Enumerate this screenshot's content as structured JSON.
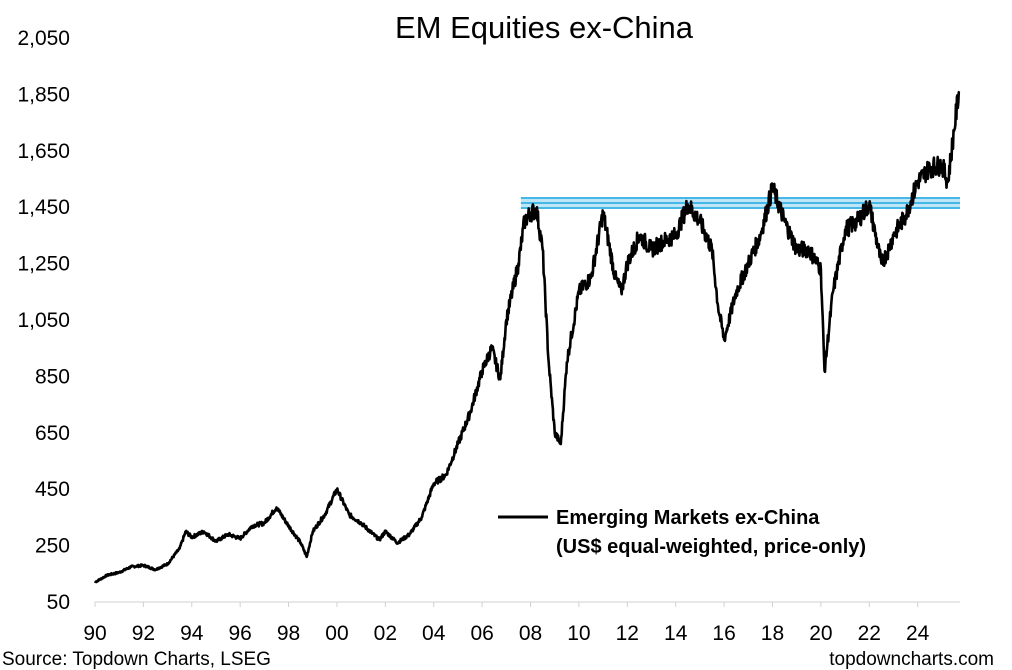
{
  "chart_data": {
    "type": "line",
    "title": "EM Equities ex-China",
    "xlabel": "",
    "ylabel": "",
    "ylim": [
      50,
      2050
    ],
    "xlim": [
      1990,
      2025.75
    ],
    "y_ticks": [
      50,
      250,
      450,
      650,
      850,
      1050,
      1250,
      1450,
      1650,
      1850,
      2050
    ],
    "y_tick_labels": [
      "50",
      "250",
      "450",
      "650",
      "850",
      "1,050",
      "1,250",
      "1,450",
      "1,650",
      "1,850",
      "2,050"
    ],
    "x_ticks": [
      1990,
      1992,
      1994,
      1996,
      1998,
      2000,
      2002,
      2004,
      2006,
      2008,
      2010,
      2012,
      2014,
      2016,
      2018,
      2020,
      2022,
      2024
    ],
    "x_tick_labels": [
      "90",
      "92",
      "94",
      "96",
      "98",
      "00",
      "02",
      "04",
      "06",
      "08",
      "10",
      "12",
      "14",
      "16",
      "18",
      "20",
      "22",
      "24"
    ],
    "grid": false,
    "legend": {
      "placement": "bottom-right",
      "entries": [
        {
          "line1": "Emerging Markets ex-China",
          "line2": "(US$ equal-weighted, price-only)",
          "color": "#000000"
        }
      ]
    },
    "series": [
      {
        "name": "Emerging Markets ex-China (US$ equal-weighted, price-only)",
        "color": "#000000",
        "x": [
          1990.0,
          1990.5,
          1991.0,
          1991.5,
          1992.0,
          1992.5,
          1993.0,
          1993.5,
          1993.75,
          1994.0,
          1994.5,
          1995.0,
          1995.5,
          1996.0,
          1996.5,
          1997.0,
          1997.5,
          1998.0,
          1998.5,
          1998.75,
          1999.0,
          1999.5,
          2000.0,
          2000.5,
          2001.0,
          2001.75,
          2002.0,
          2002.5,
          2003.0,
          2003.5,
          2004.0,
          2004.5,
          2005.0,
          2005.5,
          2006.0,
          2006.4,
          2006.75,
          2007.0,
          2007.5,
          2007.75,
          2008.0,
          2008.25,
          2008.5,
          2008.75,
          2009.0,
          2009.25,
          2009.5,
          2010.0,
          2010.5,
          2011.0,
          2011.5,
          2011.75,
          2012.0,
          2012.5,
          2013.0,
          2013.5,
          2014.0,
          2014.5,
          2015.0,
          2015.5,
          2015.75,
          2016.0,
          2016.5,
          2017.0,
          2017.5,
          2018.0,
          2018.5,
          2019.0,
          2019.5,
          2020.0,
          2020.15,
          2020.5,
          2021.0,
          2021.5,
          2022.0,
          2022.5,
          2022.75,
          2023.0,
          2023.5,
          2024.0,
          2024.5,
          2025.0,
          2025.25,
          2025.5,
          2025.7
        ],
        "y": [
          120,
          145,
          155,
          175,
          180,
          165,
          185,
          240,
          300,
          280,
          300,
          265,
          290,
          275,
          320,
          330,
          385,
          320,
          260,
          210,
          300,
          360,
          450,
          360,
          330,
          270,
          300,
          260,
          290,
          350,
          470,
          500,
          610,
          720,
          870,
          950,
          840,
          1050,
          1250,
          1400,
          1430,
          1440,
          1300,
          900,
          650,
          610,
          900,
          1150,
          1200,
          1430,
          1200,
          1150,
          1250,
          1350,
          1300,
          1330,
          1350,
          1460,
          1400,
          1300,
          1100,
          980,
          1150,
          1250,
          1350,
          1520,
          1400,
          1300,
          1300,
          1230,
          870,
          1150,
          1370,
          1400,
          1460,
          1250,
          1290,
          1350,
          1420,
          1540,
          1590,
          1600,
          1540,
          1720,
          1860
        ]
      }
    ],
    "annotations": [
      {
        "type": "horizontal-band",
        "y": 1465,
        "color": "#45b8e8",
        "label": ""
      }
    ],
    "footer": {
      "source": "Source: Topdown Charts, LSEG",
      "site": "topdowncharts.com"
    }
  }
}
